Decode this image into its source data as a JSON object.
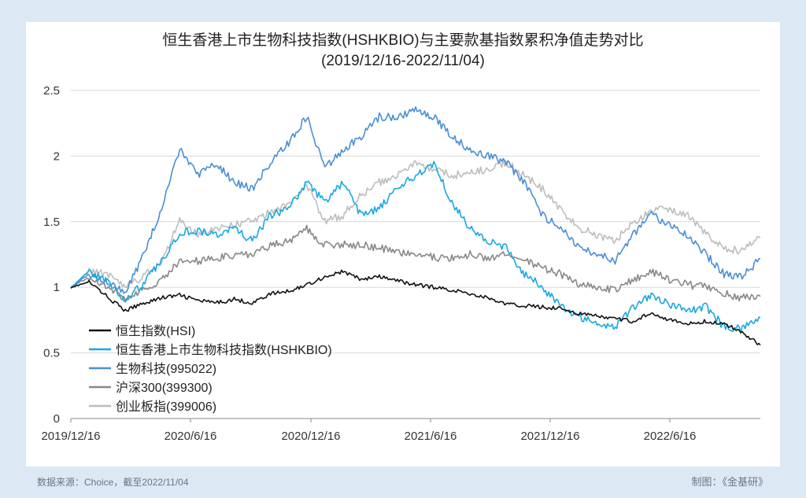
{
  "chart_data": {
    "type": "line",
    "title": "恒生香港上市生物科技指数(HSHKBIO)与主要款基指数累积净值走势对比",
    "subtitle": "(2019/12/16-2022/11/04)",
    "xlabel": "",
    "ylabel": "",
    "ylim": [
      0,
      2.5
    ],
    "yticks": [
      "0",
      "0.5",
      "1",
      "1.5",
      "2",
      "2.5"
    ],
    "xticks": [
      "2019/12/16",
      "2020/6/16",
      "2020/12/16",
      "2021/6/16",
      "2021/12/16",
      "2022/6/16"
    ],
    "grid": true,
    "legend_position": "bottom-left",
    "series": [
      {
        "name": "恒生指数(HSI)",
        "color": "#111111",
        "values": [
          1.0,
          1.04,
          0.93,
          0.82,
          0.88,
          0.92,
          0.94,
          0.9,
          0.88,
          0.91,
          0.88,
          0.95,
          0.97,
          1.02,
          1.08,
          1.12,
          1.06,
          1.08,
          1.05,
          1.02,
          1.0,
          0.98,
          0.95,
          0.92,
          0.87,
          0.86,
          0.85,
          0.84,
          0.8,
          0.78,
          0.76,
          0.74,
          0.81,
          0.75,
          0.72,
          0.74,
          0.72,
          0.66,
          0.56
        ]
      },
      {
        "name": "恒生香港上市生物科技指数(HSHKBIO)",
        "color": "#18a8e0",
        "values": [
          1.0,
          1.12,
          1.05,
          0.9,
          1.03,
          1.2,
          1.42,
          1.43,
          1.4,
          1.45,
          1.35,
          1.55,
          1.6,
          1.8,
          1.65,
          1.8,
          1.55,
          1.6,
          1.75,
          1.85,
          1.95,
          1.65,
          1.45,
          1.35,
          1.3,
          1.1,
          1.0,
          0.85,
          0.78,
          0.72,
          0.7,
          0.85,
          0.95,
          0.87,
          0.82,
          0.85,
          0.7,
          0.68,
          0.77
        ]
      },
      {
        "name": "生物科技(995022)",
        "color": "#4a8fd4",
        "values": [
          1.0,
          1.1,
          1.05,
          0.95,
          1.25,
          1.6,
          2.05,
          1.85,
          1.95,
          1.8,
          1.75,
          1.95,
          2.1,
          2.3,
          1.9,
          2.05,
          2.15,
          2.3,
          2.3,
          2.35,
          2.3,
          2.15,
          2.05,
          2.0,
          1.95,
          1.8,
          1.55,
          1.45,
          1.3,
          1.25,
          1.2,
          1.4,
          1.55,
          1.48,
          1.4,
          1.25,
          1.1,
          1.08,
          1.22
        ]
      },
      {
        "name": "沪深300(399300)",
        "color": "#888888",
        "values": [
          1.0,
          1.08,
          1.0,
          0.92,
          0.98,
          1.05,
          1.2,
          1.2,
          1.22,
          1.25,
          1.25,
          1.32,
          1.35,
          1.45,
          1.32,
          1.33,
          1.32,
          1.3,
          1.27,
          1.25,
          1.23,
          1.22,
          1.25,
          1.22,
          1.25,
          1.2,
          1.15,
          1.1,
          1.02,
          1.0,
          0.98,
          1.06,
          1.12,
          1.05,
          1.02,
          1.0,
          0.95,
          0.92,
          0.93
        ]
      },
      {
        "name": "创业板指(399006)",
        "color": "#bdbdbd",
        "values": [
          1.0,
          1.12,
          1.1,
          1.0,
          1.08,
          1.2,
          1.5,
          1.4,
          1.45,
          1.48,
          1.5,
          1.58,
          1.62,
          1.78,
          1.5,
          1.55,
          1.7,
          1.8,
          1.85,
          1.95,
          1.9,
          1.85,
          1.88,
          1.9,
          1.95,
          1.85,
          1.75,
          1.6,
          1.45,
          1.4,
          1.35,
          1.5,
          1.58,
          1.6,
          1.55,
          1.4,
          1.3,
          1.28,
          1.38
        ]
      }
    ]
  },
  "footer": {
    "source": "数据来源：Choice，截至2022/11/04",
    "credit": "制图：《金基研》"
  }
}
